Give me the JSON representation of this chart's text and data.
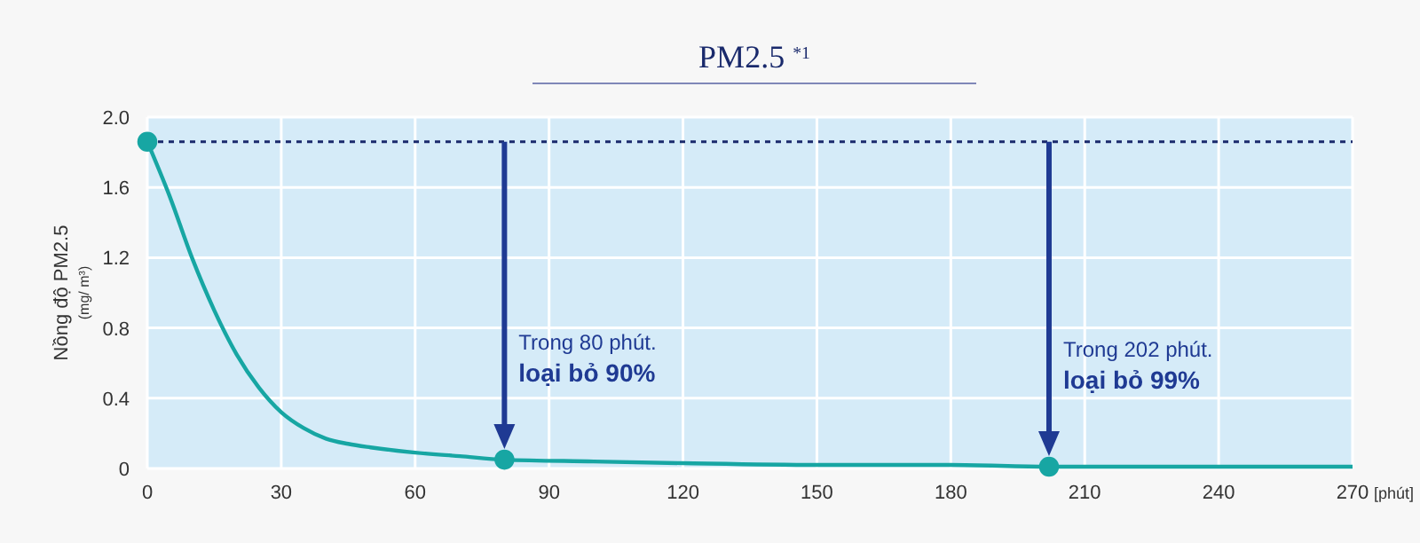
{
  "chart_data": {
    "type": "line",
    "title": "PM2.5 $^{*1}$",
    "ylabel": "Nồng độ PM2.5\n(mg/ m³)",
    "xlabel": "[phút]",
    "xlim": [
      0,
      270
    ],
    "xticks": [
      0,
      30,
      60,
      90,
      120,
      150,
      180,
      210,
      240,
      270
    ],
    "ylim": [
      0,
      2.0
    ],
    "yticks": [
      {
        "value": 0,
        "label": "0"
      },
      0.4,
      0.8,
      1.2,
      1.6,
      {
        "value": 2,
        "label": "2.0"
      }
    ],
    "grid": true,
    "series": [
      {
        "type": "line",
        "color": "#17a6a3",
        "marker": "none",
        "x": [
          0,
          5,
          10,
          15,
          20,
          25,
          30,
          35,
          40,
          45,
          50,
          60,
          70,
          80,
          100,
          120,
          150,
          180,
          202,
          240,
          270
        ],
        "values": [
          1.86,
          1.55,
          1.2,
          0.9,
          0.65,
          0.46,
          0.32,
          0.23,
          0.17,
          0.14,
          0.12,
          0.09,
          0.07,
          0.05,
          0.04,
          0.03,
          0.02,
          0.02,
          0.01,
          0.01,
          0.01
        ]
      },
      {
        "type": "scatter",
        "color": "#17a6a3",
        "marker": "circle",
        "x": [
          0,
          80,
          202
        ],
        "values": [
          1.86,
          0.05,
          0.01
        ]
      }
    ],
    "ref_lines": [
      {
        "axis": "y",
        "value": 1.86,
        "color": "#1a2a6c",
        "line_style": "dashed"
      }
    ],
    "annotations": [
      {
        "text": "Trong 80 phút.\nloại bỏ 90%",
        "x": 80,
        "y": 0.05
      },
      {
        "text": "Trong 202 phút.\nloại bỏ 99%",
        "x": 202,
        "y": 0.01
      }
    ]
  }
}
